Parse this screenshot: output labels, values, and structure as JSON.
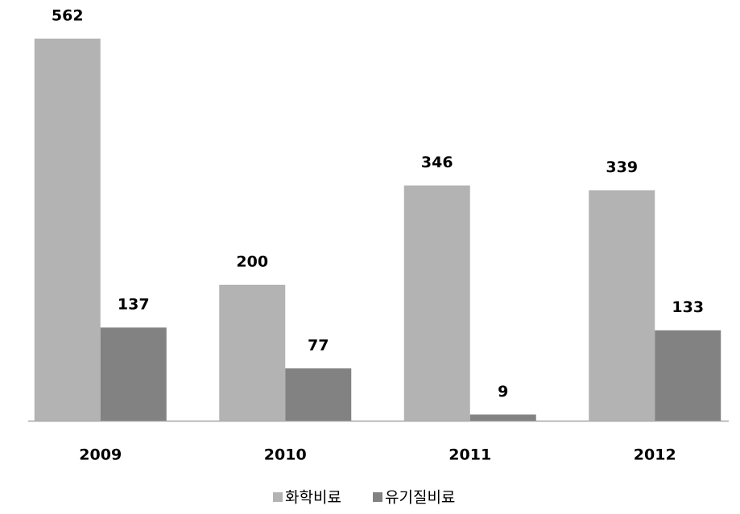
{
  "chart_data": {
    "type": "bar",
    "categories": [
      "2009",
      "2010",
      "2011",
      "2012"
    ],
    "series": [
      {
        "name": "화학비료",
        "color": "#b3b3b3",
        "values": [
          562,
          200,
          346,
          339
        ]
      },
      {
        "name": "유기질비료",
        "color": "#828282",
        "values": [
          137,
          77,
          9,
          133
        ]
      }
    ],
    "legend": "bottom"
  }
}
